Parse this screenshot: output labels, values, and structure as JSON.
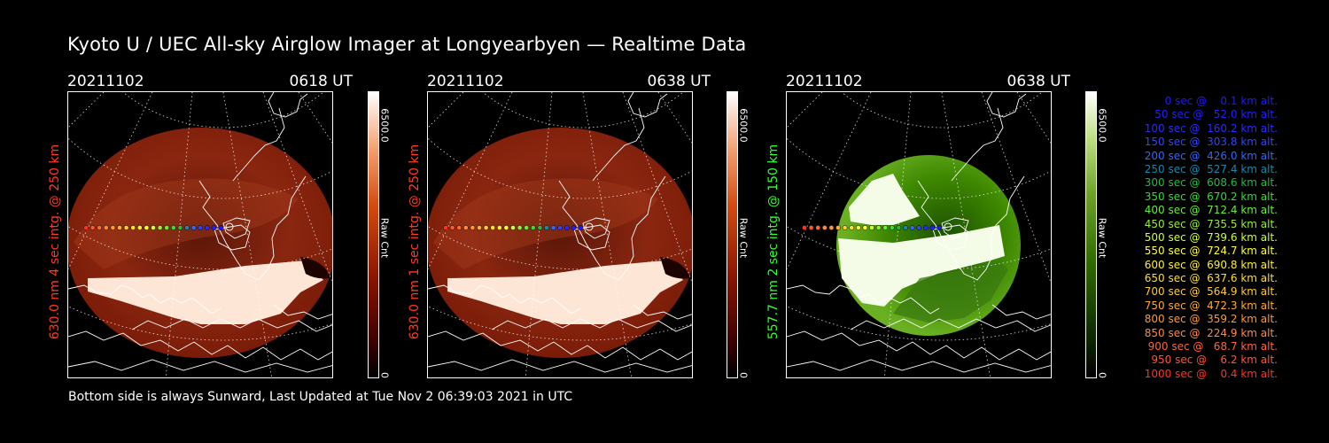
{
  "title": "Kyoto U / UEC All-sky Airglow Imager at Longyearbyen — Realtime Data",
  "footer": "Bottom side is always Sunward, Last Updated at Tue Nov  2 06:39:03 2021 in UTC",
  "panels": [
    {
      "date": "20211102",
      "time": "0618 UT",
      "label": "630.0 nm 4 sec intg. @ 250 km",
      "label_color": "#ff3b1f",
      "scale_max": "6500.0",
      "scale_min": "0",
      "unit": "Raw Cnt",
      "theme": "red"
    },
    {
      "date": "20211102",
      "time": "0638 UT",
      "label": "630.0 nm 1 sec intg. @ 250 km",
      "label_color": "#ff3b1f",
      "scale_max": "6500.0",
      "scale_min": "0",
      "unit": "Raw Cnt",
      "theme": "red"
    },
    {
      "date": "20211102",
      "time": "0638 UT",
      "label": "557.7 nm 2 sec intg. @ 150 km",
      "label_color": "#33ff33",
      "scale_max": "6500.0",
      "scale_min": "0",
      "unit": "Raw Cnt",
      "theme": "green"
    }
  ],
  "legend": [
    {
      "text": "   0 sec @    0.1 km alt.",
      "color": "#1a1aff"
    },
    {
      "text": "  50 sec @   52.0 km alt.",
      "color": "#2020ff"
    },
    {
      "text": " 100 sec @  160.2 km alt.",
      "color": "#2a2aff"
    },
    {
      "text": " 150 sec @  303.8 km alt.",
      "color": "#3344ff"
    },
    {
      "text": " 200 sec @  426.0 km alt.",
      "color": "#3366ff"
    },
    {
      "text": " 250 sec @  527.4 km alt.",
      "color": "#1a88aa"
    },
    {
      "text": " 300 sec @  608.6 km alt.",
      "color": "#22bb44"
    },
    {
      "text": " 350 sec @  670.2 km alt.",
      "color": "#33dd33"
    },
    {
      "text": " 400 sec @  712.4 km alt.",
      "color": "#66ee33"
    },
    {
      "text": " 450 sec @  735.5 km alt.",
      "color": "#99ee33"
    },
    {
      "text": " 500 sec @  739.6 km alt.",
      "color": "#ccff33"
    },
    {
      "text": " 550 sec @  724.7 km alt.",
      "color": "#ffff33"
    },
    {
      "text": " 600 sec @  690.8 km alt.",
      "color": "#ffee33"
    },
    {
      "text": " 650 sec @  637.6 km alt.",
      "color": "#ffdd33"
    },
    {
      "text": " 700 sec @  564.9 km alt.",
      "color": "#ffcc33"
    },
    {
      "text": " 750 sec @  472.3 km alt.",
      "color": "#ffaa33"
    },
    {
      "text": " 800 sec @  359.2 km alt.",
      "color": "#ff9933"
    },
    {
      "text": " 850 sec @  224.9 km alt.",
      "color": "#ff8844"
    },
    {
      "text": " 900 sec @   68.7 km alt.",
      "color": "#ff6633"
    },
    {
      "text": " 950 sec @    6.2 km alt.",
      "color": "#ff5533"
    },
    {
      "text": "1000 sec @    0.4 km alt.",
      "color": "#ff3322"
    }
  ]
}
